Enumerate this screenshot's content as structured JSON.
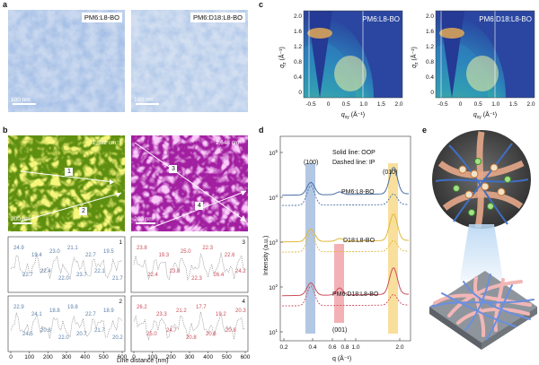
{
  "panels": {
    "a": {
      "label": "a",
      "images": [
        {
          "tag": "PM6:L8-BO",
          "scale_bar": "100 nm"
        },
        {
          "tag": "PM6:D18:L8-BO",
          "scale_bar": "100 nm"
        }
      ]
    },
    "b": {
      "label": "b",
      "images": [
        {
          "wavenumber": "1,532 cm⁻¹",
          "scale_bar": "200 nm",
          "lines": [
            "1",
            "2"
          ]
        },
        {
          "wavenumber": "1,648 cm⁻¹",
          "scale_bar": "200 nm",
          "lines": [
            "3",
            "4"
          ]
        }
      ],
      "profiles": [
        {
          "id": "1",
          "color": "#5b7fa8",
          "labels": [
            "24.9",
            "22.7",
            "19.4",
            "22.4",
            "23.0",
            "22.0",
            "21.1",
            "23.7",
            "22.7",
            "22.1",
            "19.5",
            "21.7"
          ]
        },
        {
          "id": "3",
          "color": "#c94f5b",
          "labels": [
            "23.8",
            "22.4",
            "19.3",
            "23.8",
            "25.0",
            "22.3",
            "22.3",
            "26.4",
            "22.6",
            "24.2"
          ]
        },
        {
          "id": "2",
          "color": "#5b7fa8",
          "labels": [
            "22.9",
            "24.5",
            "24.1",
            "20.8",
            "18.8",
            "22.0",
            "19.8",
            "20.7",
            "22.7",
            "21.7",
            "18.9",
            "20.2"
          ]
        },
        {
          "id": "4",
          "color": "#c94f5b",
          "labels": [
            "26.2",
            "25.0",
            "23.3",
            "24.7",
            "21.2",
            "20.8",
            "17.7",
            "20.6",
            "19.2",
            "20.8",
            "20.3"
          ]
        }
      ],
      "xlabel": "Line distance (nm)",
      "xticks": [
        "0",
        "100",
        "200",
        "300",
        "400",
        "500",
        "600"
      ]
    },
    "c": {
      "label": "c",
      "maps": [
        {
          "tag": "PM6:L8-BO"
        },
        {
          "tag": "PM6:D18:L8-BO"
        }
      ],
      "ylabel_main": "q",
      "ylabel_sub": "z",
      "ylabel_unit": " (Å⁻¹)",
      "xlabel_main": "q",
      "xlabel_sub": "xy",
      "xlabel_unit": " (Å⁻¹)",
      "yticks": [
        "2.0",
        "1.6",
        "1.2",
        "0.8",
        "0.4",
        "0"
      ],
      "xticks": [
        "-0.5",
        "0",
        "0.5",
        "1.0",
        "1.5",
        "2.0"
      ]
    },
    "d": {
      "label": "d",
      "legend_lines": [
        "Solid line: OOP",
        "Dashed line: IP"
      ],
      "curves": [
        {
          "name": "PM6:L8-BO",
          "color": "#4a6fa5"
        },
        {
          "name": "D18:L8-BO",
          "color": "#e0b73a"
        },
        {
          "name": "PM6:D18:L8-BO",
          "color": "#c94f5b"
        }
      ],
      "peak_labels": [
        "(100)",
        "(010)",
        "(001)"
      ],
      "ylabel": "Intensity (a.u.)",
      "xlabel": "q (Å⁻¹)",
      "yticks": [
        "10",
        "10",
        "10",
        "10",
        "10"
      ],
      "ytick_exp": [
        "5",
        "4",
        "3",
        "2",
        "1"
      ],
      "xticks": [
        "0.2",
        "0.4",
        "0.6",
        "0.8",
        "1.0",
        "2.0"
      ],
      "xticks_minor": [
        "0.2",
        "0.4",
        "0.6",
        "0.8",
        "1.0",
        "2.0"
      ]
    },
    "e": {
      "label": "e"
    }
  },
  "colors": {
    "afm_blue": "#6f93c6",
    "afm_light": "#c9d8ef",
    "raman_green": "#8fbf1a",
    "raman_yellow": "#e8e83a",
    "raman_magenta": "#c238c0",
    "oop_blue": "#4a6fa5",
    "blue_band": "#9fb9dc",
    "red_band": "#f1a3a8",
    "yellow_band": "#f7d98a"
  }
}
